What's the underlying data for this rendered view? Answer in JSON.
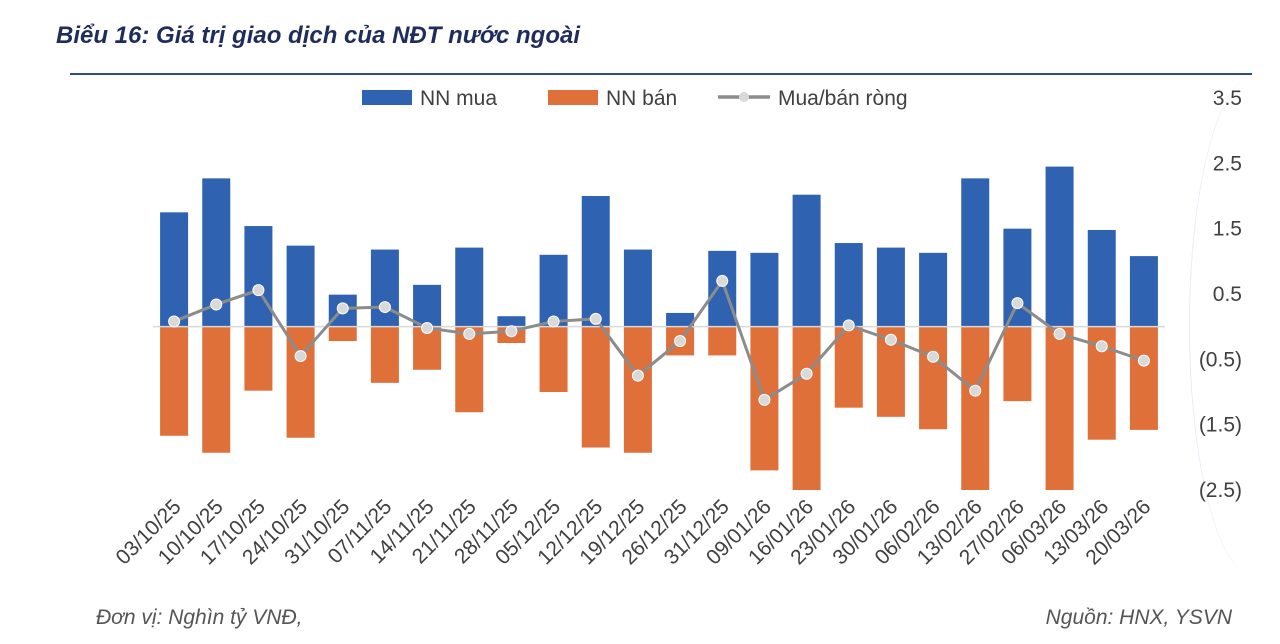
{
  "header": {
    "title": "Biểu 16: Giá trị giao dịch của NĐT nước ngoài"
  },
  "footer": {
    "unit": "Đơn vị: Nghìn tỷ VNĐ,",
    "source": "Nguồn: HNX, YSVN"
  },
  "colors": {
    "buy": "#2f63b1",
    "sell": "#e0703a",
    "net": "#8c8c8c",
    "rule": "#2e4a8f"
  },
  "chart_data": {
    "type": "bar",
    "title": "Biểu 16: Giá trị giao dịch của NĐT nước ngoài",
    "categories": [
      "03/10/25",
      "10/10/25",
      "17/10/25",
      "24/10/25",
      "31/10/25",
      "07/11/25",
      "14/11/25",
      "21/11/25",
      "28/11/25",
      "05/12/25",
      "12/12/25",
      "19/12/25",
      "26/12/25",
      "31/12/25",
      "09/01/26",
      "16/01/26",
      "23/01/26",
      "30/01/26",
      "06/02/26",
      "13/02/26",
      "27/02/26",
      "06/03/26",
      "13/03/26",
      "20/03/26"
    ],
    "series": [
      {
        "name": "NN mua",
        "kind": "bar",
        "values": [
          1.75,
          2.27,
          1.54,
          1.24,
          0.49,
          1.18,
          0.64,
          1.21,
          0.16,
          1.1,
          2.0,
          1.18,
          0.21,
          1.16,
          1.13,
          2.02,
          1.28,
          1.21,
          1.13,
          2.27,
          1.5,
          2.45,
          1.48,
          1.08
        ]
      },
      {
        "name": "NN bán",
        "kind": "bar",
        "values": [
          -1.67,
          -1.93,
          -0.98,
          -1.7,
          -0.22,
          -0.86,
          -0.66,
          -1.31,
          -0.25,
          -1.0,
          -1.85,
          -1.93,
          -0.44,
          -0.44,
          -2.2,
          -2.5,
          -1.24,
          -1.38,
          -1.57,
          -2.5,
          -1.14,
          -2.5,
          -1.73,
          -1.58
        ]
      },
      {
        "name": "Mua/bán ròng",
        "kind": "line",
        "values": [
          0.08,
          0.34,
          0.56,
          -0.45,
          0.28,
          0.3,
          -0.02,
          -0.11,
          -0.07,
          0.08,
          0.12,
          -0.75,
          -0.22,
          0.7,
          -1.12,
          -0.72,
          0.02,
          -0.2,
          -0.46,
          -0.98,
          0.36,
          -0.11,
          -0.3,
          -0.52
        ]
      }
    ],
    "legend": [
      "NN mua",
      "NN bán",
      "Mua/bán ròng"
    ],
    "legend_position": "top",
    "ylim": [
      -2.5,
      3.5
    ],
    "ytick_values": [
      3.5,
      2.5,
      1.5,
      0.5,
      -0.5,
      -1.5,
      -2.5
    ],
    "ytick_labels": [
      "3.5",
      "2.5",
      "1.5",
      "0.5",
      "(0.5)",
      "(1.5)",
      "(2.5)"
    ],
    "y_axis_side": "right",
    "grid": false,
    "xlabel": "",
    "ylabel": ""
  }
}
